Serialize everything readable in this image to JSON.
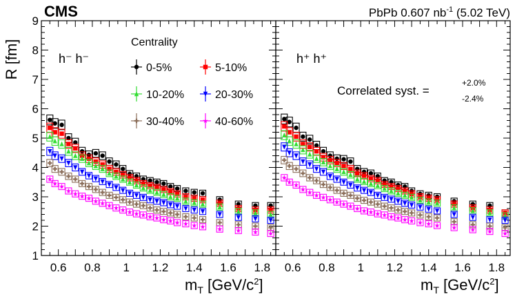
{
  "header": {
    "experiment": "CMS",
    "lumi_prefix": "PbPb 0.607 nb",
    "lumi_exp": "-1",
    "lumi_suffix": " (5.02 TeV)"
  },
  "legend_title": "Centrality",
  "correlated_syst": {
    "label": "Correlated syst. =",
    "up": "+2.0%",
    "down": "-2.4%"
  },
  "chart_data": {
    "type": "scatter",
    "xlabel": "m_T [GeV/c^2]",
    "ylabel": "R [fm]",
    "xlim": [
      0.5,
      1.88
    ],
    "ylim": [
      1,
      9
    ],
    "xticks": [
      "0.6",
      "0.8",
      "1",
      "1.2",
      "1.4",
      "1.6",
      "1.8"
    ],
    "yticks": [
      "1",
      "2",
      "3",
      "4",
      "5",
      "6",
      "7",
      "8",
      "9"
    ],
    "x": [
      0.55,
      0.58,
      0.62,
      0.66,
      0.7,
      0.74,
      0.78,
      0.82,
      0.86,
      0.9,
      0.94,
      0.98,
      1.02,
      1.06,
      1.1,
      1.14,
      1.18,
      1.22,
      1.26,
      1.3,
      1.35,
      1.4,
      1.45,
      1.55,
      1.66,
      1.76,
      1.85
    ],
    "series_meta": [
      {
        "name": "0-5%",
        "color": "#000000",
        "marker": "circle"
      },
      {
        "name": "5-10%",
        "color": "#ff0000",
        "marker": "square"
      },
      {
        "name": "10-20%",
        "color": "#33dd33",
        "marker": "triangle-up"
      },
      {
        "name": "20-30%",
        "color": "#0000ff",
        "marker": "triangle-down"
      },
      {
        "name": "30-40%",
        "color": "#8b6e5a",
        "marker": "cross"
      },
      {
        "name": "40-60%",
        "color": "#ff00ff",
        "marker": "star"
      }
    ],
    "panels": [
      {
        "label": "h⁻ h⁻",
        "series": [
          {
            "name": "0-5%",
            "values": [
              5.62,
              5.5,
              5.45,
              5.0,
              4.85,
              4.55,
              4.43,
              4.48,
              4.4,
              4.2,
              4.1,
              3.95,
              3.78,
              3.7,
              3.6,
              3.55,
              3.5,
              3.45,
              3.35,
              3.28,
              3.2,
              3.15,
              3.12,
              2.9,
              2.75,
              2.7,
              2.7
            ]
          },
          {
            "name": "5-10%",
            "values": [
              5.35,
              5.2,
              5.15,
              4.8,
              4.65,
              4.4,
              4.3,
              4.2,
              4.1,
              3.95,
              3.85,
              3.75,
              3.65,
              3.55,
              3.45,
              3.38,
              3.32,
              3.25,
              3.18,
              3.1,
              3.0,
              2.95,
              2.9,
              2.78,
              2.6,
              2.55,
              2.55
            ]
          },
          {
            "name": "10-20%",
            "values": [
              5.05,
              4.9,
              4.8,
              4.55,
              4.4,
              4.3,
              4.15,
              4.05,
              3.95,
              3.8,
              3.7,
              3.6,
              3.5,
              3.4,
              3.3,
              3.22,
              3.15,
              3.08,
              3.0,
              2.95,
              2.85,
              2.8,
              2.75,
              2.65,
              2.5,
              2.45,
              2.4
            ]
          },
          {
            "name": "20-30%",
            "values": [
              4.55,
              4.4,
              4.3,
              4.15,
              4.0,
              3.85,
              3.72,
              3.62,
              3.52,
              3.42,
              3.32,
              3.22,
              3.12,
              3.05,
              2.98,
              2.9,
              2.85,
              2.8,
              2.73,
              2.68,
              2.6,
              2.55,
              2.5,
              2.4,
              2.3,
              2.25,
              2.2
            ]
          },
          {
            "name": "30-40%",
            "values": [
              4.15,
              3.95,
              3.85,
              3.7,
              3.6,
              3.45,
              3.35,
              3.25,
              3.15,
              3.05,
              2.98,
              2.9,
              2.82,
              2.75,
              2.7,
              2.62,
              2.55,
              2.5,
              2.45,
              2.4,
              2.32,
              2.28,
              2.22,
              2.12,
              2.05,
              2.0,
              1.95
            ]
          },
          {
            "name": "40-60%",
            "values": [
              3.6,
              3.45,
              3.35,
              3.2,
              3.1,
              3.02,
              2.95,
              2.85,
              2.78,
              2.7,
              2.62,
              2.55,
              2.48,
              2.42,
              2.38,
              2.32,
              2.28,
              2.22,
              2.18,
              2.12,
              2.08,
              2.02,
              1.98,
              1.9,
              1.85,
              1.8,
              1.75
            ]
          }
        ]
      },
      {
        "label": "h⁺ h⁺",
        "series": [
          {
            "name": "0-5%",
            "values": [
              5.65,
              5.55,
              5.35,
              5.05,
              4.95,
              4.75,
              4.55,
              4.4,
              4.3,
              4.28,
              4.2,
              3.95,
              3.85,
              3.8,
              3.7,
              3.55,
              3.5,
              3.4,
              3.35,
              3.2,
              3.1,
              3.05,
              3.0,
              2.85,
              2.75,
              2.7,
              2.45
            ]
          },
          {
            "name": "5-10%",
            "values": [
              5.4,
              5.2,
              5.05,
              4.8,
              4.7,
              4.55,
              4.35,
              4.25,
              4.15,
              4.05,
              3.95,
              3.8,
              3.72,
              3.62,
              3.55,
              3.42,
              3.35,
              3.28,
              3.2,
              3.1,
              3.0,
              2.95,
              2.9,
              2.75,
              2.62,
              2.55,
              2.45
            ]
          },
          {
            "name": "10-20%",
            "values": [
              5.1,
              4.9,
              4.8,
              4.6,
              4.45,
              4.3,
              4.18,
              4.05,
              3.95,
              3.85,
              3.75,
              3.6,
              3.52,
              3.45,
              3.38,
              3.28,
              3.2,
              3.12,
              3.05,
              2.98,
              2.88,
              2.82,
              2.78,
              2.62,
              2.52,
              2.45,
              2.35
            ]
          },
          {
            "name": "20-30%",
            "values": [
              4.7,
              4.5,
              4.4,
              4.2,
              4.1,
              3.95,
              3.85,
              3.7,
              3.6,
              3.5,
              3.4,
              3.3,
              3.22,
              3.15,
              3.05,
              2.98,
              2.92,
              2.85,
              2.78,
              2.72,
              2.65,
              2.58,
              2.52,
              2.4,
              2.3,
              2.22,
              2.2
            ]
          },
          {
            "name": "30-40%",
            "values": [
              4.25,
              4.05,
              3.95,
              3.8,
              3.65,
              3.55,
              3.42,
              3.32,
              3.22,
              3.12,
              3.05,
              2.95,
              2.88,
              2.82,
              2.75,
              2.68,
              2.62,
              2.55,
              2.5,
              2.45,
              2.38,
              2.32,
              2.28,
              2.15,
              2.05,
              2.0,
              1.95
            ]
          },
          {
            "name": "40-60%",
            "values": [
              3.65,
              3.5,
              3.4,
              3.25,
              3.15,
              3.05,
              2.98,
              2.9,
              2.82,
              2.75,
              2.68,
              2.6,
              2.52,
              2.48,
              2.42,
              2.38,
              2.32,
              2.28,
              2.22,
              2.18,
              2.12,
              2.08,
              2.02,
              1.95,
              1.88,
              1.82,
              1.75
            ]
          }
        ]
      }
    ]
  }
}
